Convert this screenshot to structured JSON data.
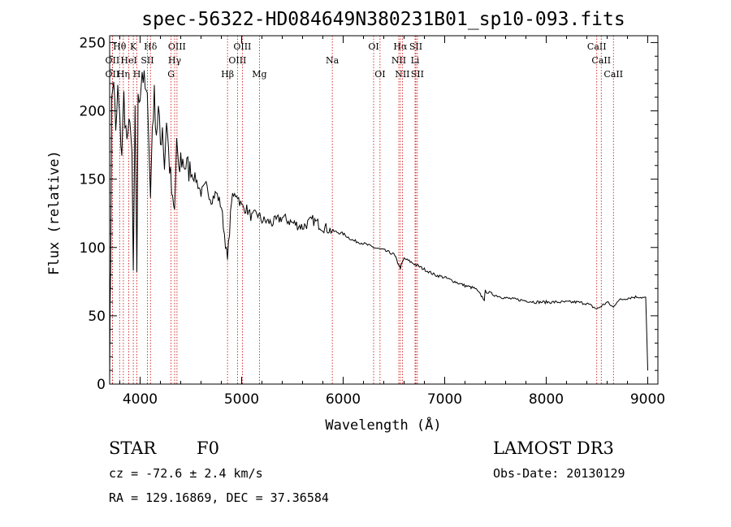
{
  "chart_data": {
    "type": "line",
    "title": "spec-56322-HD084649N380231B01_sp10-093.fits",
    "xlabel": "Wavelength (Å)",
    "ylabel": "Flux (relative)",
    "xlim": [
      3700,
      9100
    ],
    "ylim": [
      0,
      255
    ],
    "xticks": [
      4000,
      5000,
      6000,
      7000,
      8000,
      9000
    ],
    "yticks": [
      0,
      50,
      100,
      150,
      200,
      250
    ],
    "series": [
      {
        "name": "flux",
        "x": [
          3700,
          3710,
          3720,
          3740,
          3760,
          3780,
          3800,
          3820,
          3840,
          3860,
          3880,
          3900,
          3920,
          3933,
          3950,
          3968,
          3980,
          4000,
          4020,
          4040,
          4060,
          4080,
          4102,
          4120,
          4140,
          4160,
          4180,
          4200,
          4220,
          4240,
          4260,
          4280,
          4300,
          4320,
          4340,
          4360,
          4380,
          4400,
          4450,
          4500,
          4550,
          4600,
          4650,
          4700,
          4750,
          4800,
          4861,
          4900,
          4950,
          5000,
          5050,
          5100,
          5150,
          5200,
          5300,
          5400,
          5500,
          5600,
          5700,
          5800,
          5900,
          6000,
          6100,
          6200,
          6300,
          6400,
          6500,
          6563,
          6600,
          6700,
          6800,
          6900,
          7000,
          7100,
          7200,
          7300,
          7390,
          7400,
          7500,
          7600,
          7700,
          7800,
          7900,
          8000,
          8100,
          8200,
          8300,
          8400,
          8498,
          8542,
          8600,
          8662,
          8700,
          8800,
          8900,
          8980,
          9000
        ],
        "values": [
          10,
          90,
          205,
          225,
          180,
          215,
          190,
          170,
          210,
          185,
          175,
          200,
          160,
          80,
          195,
          85,
          205,
          215,
          230,
          220,
          210,
          200,
          135,
          190,
          210,
          185,
          200,
          175,
          190,
          160,
          195,
          170,
          150,
          130,
          125,
          180,
          150,
          165,
          160,
          155,
          150,
          140,
          145,
          135,
          140,
          130,
          90,
          135,
          140,
          130,
          128,
          122,
          125,
          120,
          118,
          122,
          118,
          115,
          120,
          115,
          112,
          110,
          105,
          103,
          100,
          98,
          95,
          85,
          92,
          88,
          84,
          80,
          78,
          75,
          72,
          70,
          62,
          68,
          65,
          63,
          62,
          61,
          60,
          60,
          60,
          60,
          60,
          59,
          55,
          57,
          60,
          56,
          61,
          63,
          64,
          63,
          10
        ]
      }
    ],
    "lines": [
      {
        "label": "Hθ",
        "wl": 3798,
        "row": 1
      },
      {
        "label": "OII",
        "wl": 3727,
        "row": 2
      },
      {
        "label": "OII",
        "wl": 3727,
        "row": 3
      },
      {
        "label": "Hη",
        "wl": 3835,
        "row": 3
      },
      {
        "label": "HeI",
        "wl": 3889,
        "row": 2
      },
      {
        "label": "K",
        "wl": 3933,
        "row": 1
      },
      {
        "label": "H",
        "wl": 3968,
        "row": 3
      },
      {
        "label": "SII",
        "wl": 4072,
        "row": 2
      },
      {
        "label": "Hδ",
        "wl": 4102,
        "row": 1
      },
      {
        "label": "OIII",
        "wl": 4363,
        "row": 1
      },
      {
        "label": "Hγ",
        "wl": 4340,
        "row": 2
      },
      {
        "label": "G",
        "wl": 4305,
        "row": 3
      },
      {
        "label": "Hβ",
        "wl": 4861,
        "row": 3
      },
      {
        "label": "OIII",
        "wl": 4959,
        "row": 2
      },
      {
        "label": "OIII",
        "wl": 5007,
        "row": 1
      },
      {
        "label": "Mg",
        "wl": 5175,
        "row": 3
      },
      {
        "label": "Na",
        "wl": 5893,
        "row": 2
      },
      {
        "label": "OI",
        "wl": 6300,
        "row": 1
      },
      {
        "label": "OI",
        "wl": 6363,
        "row": 3
      },
      {
        "label": "Hα",
        "wl": 6563,
        "row": 1
      },
      {
        "label": "NII",
        "wl": 6548,
        "row": 2
      },
      {
        "label": "NII",
        "wl": 6583,
        "row": 3
      },
      {
        "label": "SII",
        "wl": 6716,
        "row": 1
      },
      {
        "label": "SII",
        "wl": 6731,
        "row": 3
      },
      {
        "label": "Li",
        "wl": 6708,
        "row": 2
      },
      {
        "label": "CaII",
        "wl": 8498,
        "row": 1
      },
      {
        "label": "CaII",
        "wl": 8542,
        "row": 2
      },
      {
        "label": "CaII",
        "wl": 8662,
        "row": 3
      }
    ]
  },
  "info": {
    "class": "STAR",
    "subclass": "F0",
    "survey": "LAMOST DR3",
    "cz": "cz = -72.6 ± 2.4 km/s",
    "obs_date": "Obs-Date: 20130129",
    "radec": "RA = 129.16869, DEC =  37.36584"
  },
  "colors": {
    "line_marker": "#cc0000",
    "trace": "#000000"
  }
}
